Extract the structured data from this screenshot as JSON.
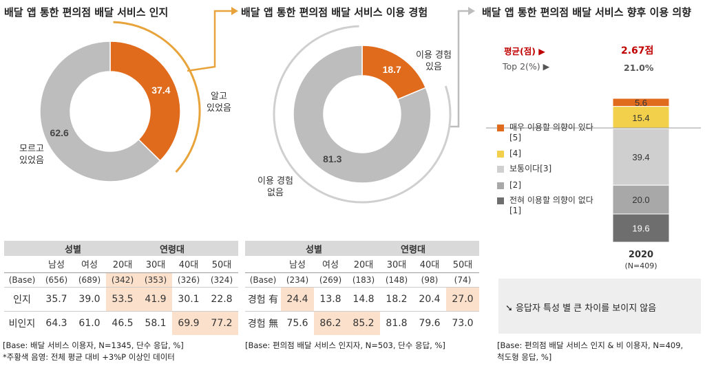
{
  "titles": {
    "awareness": "배달 앱 통한 편의점 배달 서비스 인지",
    "experience": "배달 앱 통한 편의점 배달 서비스 이용 경험",
    "intention": "배달 앱 통한 편의점 배달 서비스 향후 이용 의향"
  },
  "chart_data": [
    {
      "type": "pie",
      "title": "배달 앱 통한 편의점 배달 서비스 인지",
      "slices": [
        {
          "label": "알고 있었음",
          "value": 37.4,
          "color": "#e06b1c"
        },
        {
          "label": "모르고 있었음",
          "value": 62.6,
          "color": "#bdbdbd"
        }
      ],
      "unit": "%"
    },
    {
      "type": "pie",
      "title": "배달 앱 통한 편의점 배달 서비스 이용 경험",
      "slices": [
        {
          "label": "이용 경험 있음",
          "value": 18.7,
          "color": "#e06b1c"
        },
        {
          "label": "이용 경험 없음",
          "value": 81.3,
          "color": "#bdbdbd"
        }
      ],
      "unit": "%"
    },
    {
      "type": "bar",
      "stacked": true,
      "title": "배달 앱 통한 편의점 배달 서비스 향후 이용 의향",
      "categories": [
        "2020"
      ],
      "base_label": "(N=409)",
      "series": [
        {
          "name": "매우 이용할 의향이 있다[5]",
          "values": [
            5.6
          ],
          "color": "#e06b1c"
        },
        {
          "name": "[4]",
          "values": [
            15.4
          ],
          "color": "#f2d04b"
        },
        {
          "name": "보통이다[3]",
          "values": [
            39.4
          ],
          "color": "#cfcfcf"
        },
        {
          "name": "[2]",
          "values": [
            20.0
          ],
          "color": "#a8a8a8"
        },
        {
          "name": "전혀 이용할 의향이 없다[1]",
          "values": [
            19.6
          ],
          "color": "#6e6e6e"
        }
      ],
      "ylim": [
        0,
        100
      ]
    }
  ],
  "donut_labels": {
    "aware_yes": "알고\n있었음",
    "aware_no": "모르고\n있었음",
    "exp_yes": "이용 경험\n있음",
    "exp_no": "이용 경험\n없음"
  },
  "intention_stats": {
    "mean_label": "평균(점) ▶",
    "mean_value": "2.67점",
    "top2_label": "Top 2(%) ▶",
    "top2_value": "21.0%",
    "year": "2020",
    "base": "(N=409)"
  },
  "table1": {
    "groups": [
      "성별",
      "연령대"
    ],
    "headers": [
      "남성",
      "여성",
      "20대",
      "30대",
      "40대",
      "50대"
    ],
    "base": {
      "label": "(Base)",
      "values": [
        "(656)",
        "(689)",
        "(342)",
        "(353)",
        "(326)",
        "(324)"
      ],
      "highlight": [
        false,
        false,
        true,
        true,
        false,
        false
      ]
    },
    "rows": [
      {
        "label": "인지",
        "values": [
          "35.7",
          "39.0",
          "53.5",
          "41.9",
          "30.1",
          "22.8"
        ],
        "highlight": [
          false,
          false,
          true,
          true,
          false,
          false
        ]
      },
      {
        "label": "비인지",
        "values": [
          "64.3",
          "61.0",
          "46.5",
          "58.1",
          "69.9",
          "77.2"
        ],
        "highlight": [
          false,
          false,
          false,
          false,
          true,
          true
        ]
      }
    ],
    "note1": "[Base: 배달 서비스 이용자, N=1345, 단수 응답, %]",
    "note2": "*주황색 음영: 전체 평균 대비 +3%P 이상인 데이터"
  },
  "table2": {
    "groups": [
      "성별",
      "연령대"
    ],
    "headers": [
      "남성",
      "여성",
      "20대",
      "30대",
      "40대",
      "50대"
    ],
    "base": {
      "label": "(Base)",
      "values": [
        "(234)",
        "(269)",
        "(183)",
        "(148)",
        "(98)",
        "(74)"
      ],
      "highlight": [
        false,
        false,
        false,
        false,
        false,
        false
      ]
    },
    "rows": [
      {
        "label": "경험 有",
        "values": [
          "24.4",
          "13.8",
          "14.8",
          "18.2",
          "20.4",
          "27.0"
        ],
        "highlight": [
          true,
          false,
          false,
          false,
          false,
          true
        ]
      },
      {
        "label": "경험 無",
        "values": [
          "75.6",
          "86.2",
          "85.2",
          "81.8",
          "79.6",
          "73.0"
        ],
        "highlight": [
          false,
          true,
          true,
          false,
          false,
          false
        ]
      }
    ],
    "note1": "[Base: 편의점 배달 서비스 인지자, N=503, 단수 응답, %]"
  },
  "callout": {
    "icon": "arrow-down-right-icon",
    "text": "➘ 응답자 특성 별 큰 차이를 보이지 않음"
  },
  "note3": {
    "line1": "[Base: 편의점 배달 서비스 인지 & 비 이용자, N=409,",
    "line2": "척도형 응답, %]"
  }
}
